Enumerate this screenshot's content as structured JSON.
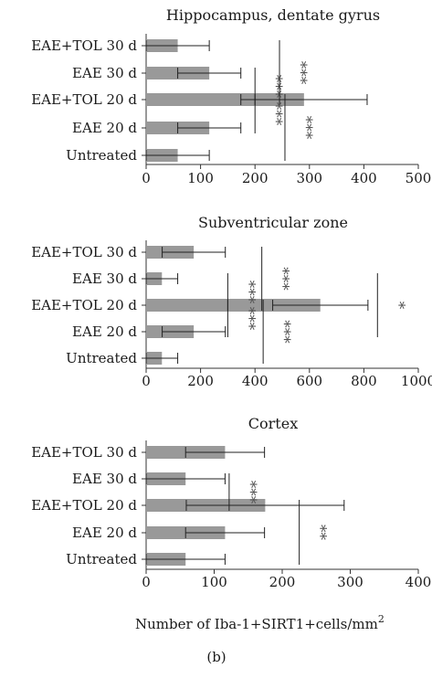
{
  "panel_label": "(b)",
  "xlabel": "Number of Iba-1+SIRT1+cells/mm",
  "xlabel_superscript": "2",
  "bar_color": "#999999",
  "chart_data": [
    {
      "type": "bar",
      "orientation": "horizontal",
      "title": "Hippocampus, dentate gyrus",
      "categories": [
        "EAE+TOL 30 d",
        "EAE 30 d",
        "EAE+TOL 20 d",
        "EAE 20 d",
        "Untreated"
      ],
      "values": [
        58,
        116,
        290,
        116,
        58
      ],
      "errors": [
        58,
        58,
        116,
        58,
        58
      ],
      "xlim": [
        0,
        500
      ],
      "xticks": [
        0,
        100,
        200,
        300,
        400,
        500
      ],
      "significance": [
        {
          "from": 1,
          "to": 2,
          "x": 200,
          "label": "***"
        },
        {
          "from": 0,
          "to": 2,
          "x": 245,
          "label": "***"
        },
        {
          "from": 2,
          "to": 3,
          "x": 200,
          "label": "***"
        },
        {
          "from": 2,
          "to": 4,
          "x": 255,
          "label": "***"
        }
      ]
    },
    {
      "type": "bar",
      "orientation": "horizontal",
      "title": "Subventricular zone",
      "categories": [
        "EAE+TOL 30 d",
        "EAE 30 d",
        "EAE+TOL 20 d",
        "EAE 20 d",
        "Untreated"
      ],
      "values": [
        175,
        58,
        640,
        175,
        58
      ],
      "errors": [
        116,
        58,
        175,
        116,
        58
      ],
      "xlim": [
        0,
        1000
      ],
      "xticks": [
        0,
        200,
        400,
        600,
        800,
        1000
      ],
      "significance": [
        {
          "from": 1,
          "to": 2,
          "x": 300,
          "label": "***"
        },
        {
          "from": 0,
          "to": 2,
          "x": 425,
          "label": "***"
        },
        {
          "from": 2,
          "to": 3,
          "x": 300,
          "label": "***"
        },
        {
          "from": 2,
          "to": 4,
          "x": 430,
          "label": "***"
        },
        {
          "from": 1,
          "to": 3,
          "x": 850,
          "label": "*"
        }
      ]
    },
    {
      "type": "bar",
      "orientation": "horizontal",
      "title": "Cortex",
      "categories": [
        "EAE+TOL 30 d",
        "EAE 30 d",
        "EAE+TOL 20 d",
        "EAE 20 d",
        "Untreated"
      ],
      "values": [
        116,
        58,
        175,
        116,
        58
      ],
      "errors": [
        58,
        58,
        116,
        58,
        58
      ],
      "xlim": [
        0,
        400
      ],
      "xticks": [
        0,
        100,
        200,
        300,
        400
      ],
      "significance": [
        {
          "from": 1,
          "to": 2,
          "x": 122,
          "label": "***"
        },
        {
          "from": 2,
          "to": 4,
          "x": 225,
          "label": "**"
        }
      ]
    }
  ]
}
